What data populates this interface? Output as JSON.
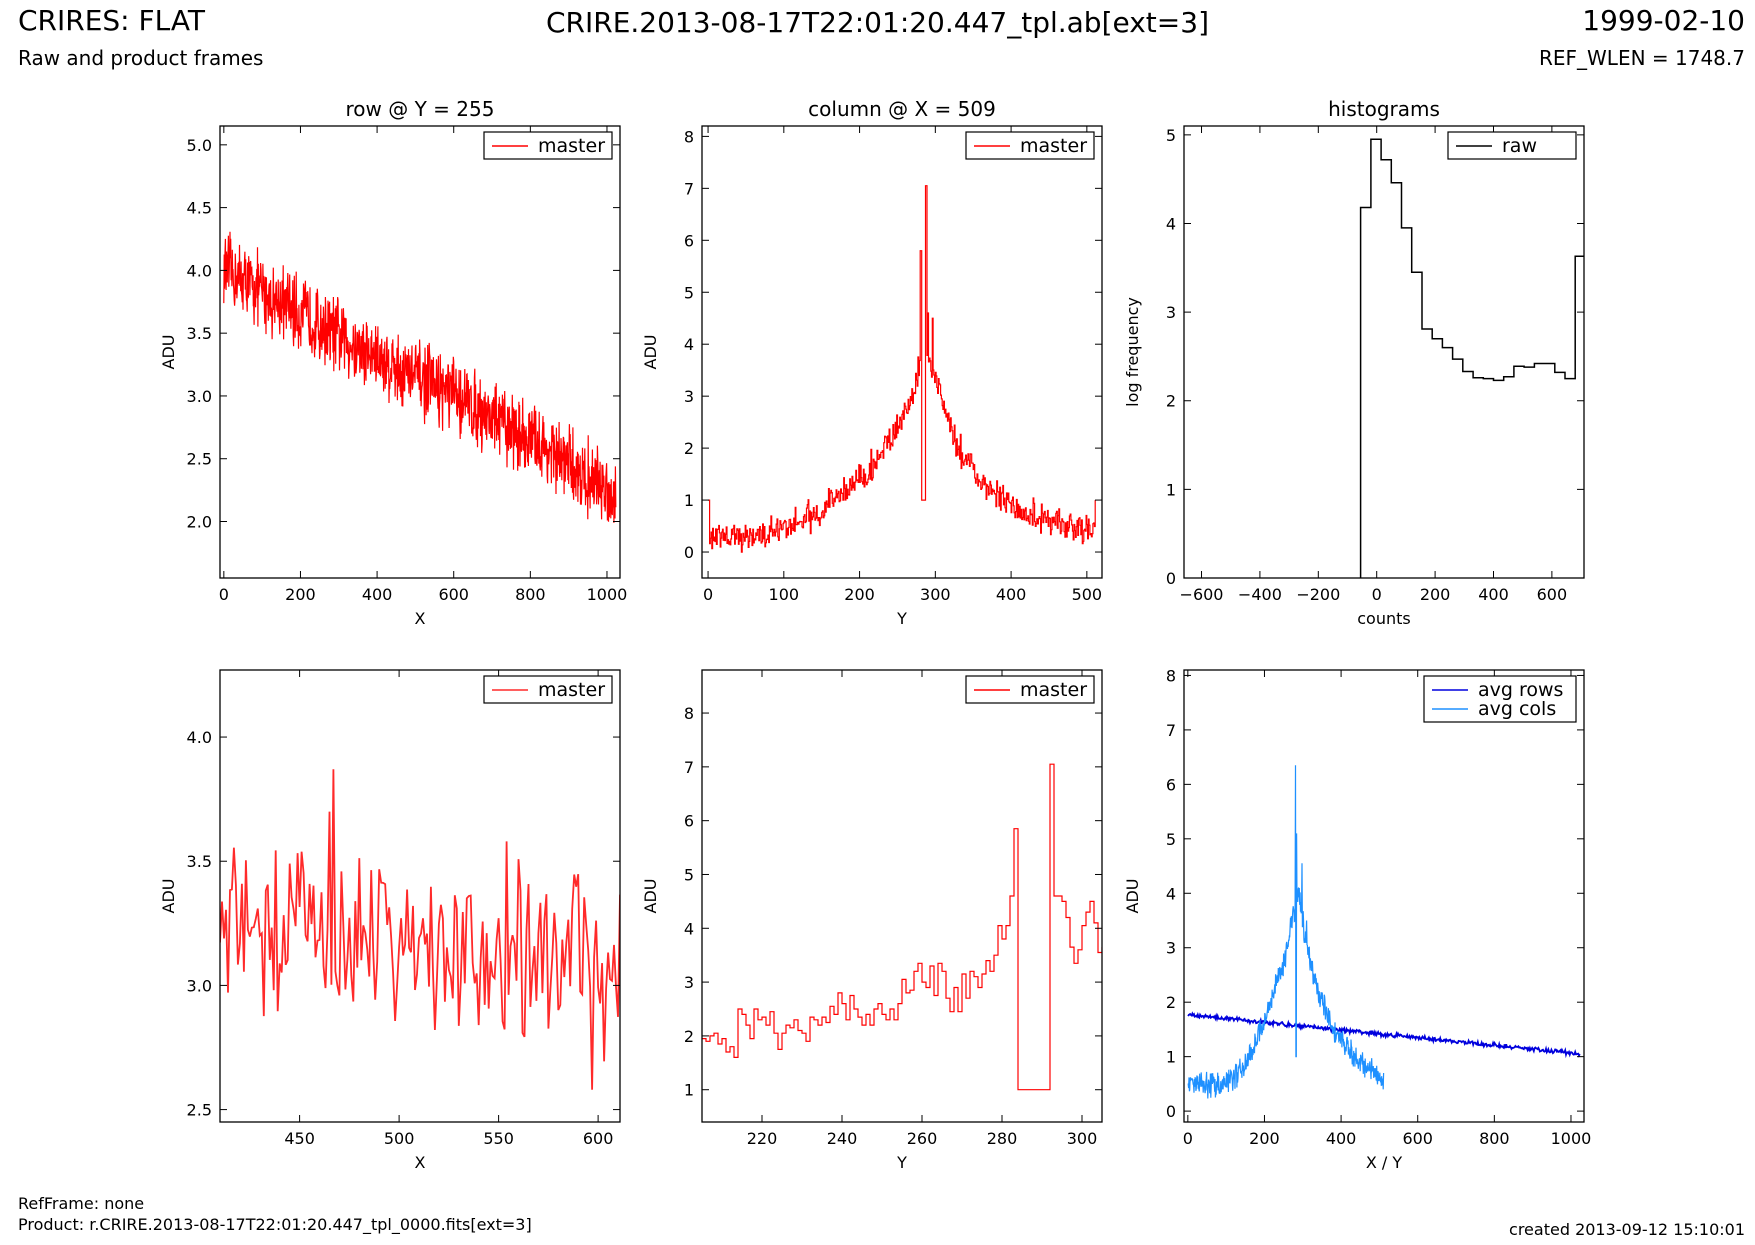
{
  "header": {
    "title": "CRIRES: FLAT",
    "subtitle": "Raw and product frames",
    "file": "CRIRE.2013-08-17T22:01:20.447_tpl.ab[ext=3]",
    "date": "1999-02-10",
    "ref_wlen": "REF_WLEN = 1748.7"
  },
  "footer": {
    "refframe": "RefFrame: none",
    "product": "Product: r.CRIRE.2013-08-17T22:01:20.447_tpl_0000.fits[ext=3]",
    "created": "created 2013-09-12 15:10:01"
  },
  "colors": {
    "master": "#ff0000",
    "raw": "#000000",
    "avg_rows": "#0000dd",
    "avg_cols": "#1e90ff"
  },
  "chart_data": [
    {
      "id": "row",
      "type": "line",
      "title": "row @ Y = 255",
      "xlabel": "X",
      "ylabel": "ADU",
      "xlim": [
        -10,
        1034
      ],
      "ylim": [
        1.55,
        5.15
      ],
      "xticks": [
        0,
        200,
        400,
        600,
        800,
        1000
      ],
      "yticks": [
        2.0,
        2.5,
        3.0,
        3.5,
        4.0,
        4.5,
        5.0
      ],
      "ytick_decimals": 1,
      "legend": [
        "master"
      ],
      "series": [
        {
          "name": "master",
          "color": "#ff0000",
          "step": false,
          "width": 1.2,
          "model": "noise",
          "x_start": 0,
          "x_end": 1023,
          "n": 1024,
          "trend": [
            [
              0,
              4.0
            ],
            [
              200,
              3.65
            ],
            [
              400,
              3.3
            ],
            [
              600,
              3.0
            ],
            [
              800,
              2.65
            ],
            [
              1023,
              2.2
            ]
          ],
          "noise_amplitude": 0.45
        }
      ]
    },
    {
      "id": "column",
      "type": "line",
      "title": "column @ X = 509",
      "xlabel": "Y",
      "ylabel": "ADU",
      "xlim": [
        -8,
        520
      ],
      "ylim": [
        -0.5,
        8.2
      ],
      "xticks": [
        0,
        100,
        200,
        300,
        400,
        500
      ],
      "yticks": [
        0,
        1,
        2,
        3,
        4,
        5,
        6,
        7,
        8
      ],
      "ytick_decimals": 0,
      "legend": [
        "master"
      ],
      "series": [
        {
          "name": "master",
          "color": "#ff0000",
          "step": true,
          "width": 1.2,
          "model": "noise",
          "x_start": 0,
          "x_end": 511,
          "n": 512,
          "trend": [
            [
              0,
              0.3
            ],
            [
              60,
              0.3
            ],
            [
              100,
              0.45
            ],
            [
              150,
              0.8
            ],
            [
              200,
              1.4
            ],
            [
              240,
              2.1
            ],
            [
              270,
              3.0
            ],
            [
              285,
              4.2
            ],
            [
              300,
              3.4
            ],
            [
              330,
              2.0
            ],
            [
              360,
              1.4
            ],
            [
              400,
              0.9
            ],
            [
              450,
              0.55
            ],
            [
              511,
              0.4
            ]
          ],
          "noise_amplitude": 0.45,
          "spikes": [
            [
              280,
              5.8
            ],
            [
              281,
              5.8
            ],
            [
              287,
              7.05
            ],
            [
              288,
              7.05
            ],
            [
              290,
              4.6
            ],
            [
              296,
              4.5
            ],
            [
              282,
              1.0
            ],
            [
              283,
              1.0
            ],
            [
              284,
              1.0
            ],
            [
              285,
              1.0
            ],
            [
              286,
              1.0
            ],
            [
              511,
              1.0
            ],
            [
              512,
              1.0
            ],
            [
              0,
              1.0
            ],
            [
              1,
              1.0
            ]
          ]
        }
      ]
    },
    {
      "id": "histograms",
      "type": "line",
      "title": "histograms",
      "xlabel": "counts",
      "ylabel": "log frequency",
      "xlim": [
        -660,
        710
      ],
      "ylim": [
        0,
        5.1
      ],
      "xticks": [
        -600,
        -400,
        -200,
        0,
        200,
        400,
        600
      ],
      "yticks": [
        0,
        1,
        2,
        3,
        4,
        5
      ],
      "ytick_decimals": 0,
      "legend": [
        "raw"
      ],
      "series": [
        {
          "name": "raw",
          "color": "#000000",
          "step": true,
          "width": 1.5,
          "x": [
            -55,
            -55,
            -20,
            15,
            50,
            85,
            120,
            155,
            190,
            225,
            260,
            295,
            330,
            365,
            400,
            435,
            470,
            505,
            540,
            575,
            610,
            645,
            680,
            710
          ],
          "y": [
            0,
            4.18,
            4.95,
            4.72,
            4.46,
            3.95,
            3.45,
            2.81,
            2.7,
            2.6,
            2.47,
            2.33,
            2.26,
            2.25,
            2.23,
            2.27,
            2.39,
            2.38,
            2.42,
            2.42,
            2.32,
            2.25,
            3.63,
            3.63
          ]
        }
      ]
    },
    {
      "id": "row-zoom",
      "type": "line",
      "title": "",
      "xlabel": "X",
      "ylabel": "ADU",
      "xlim": [
        410,
        611
      ],
      "ylim": [
        2.45,
        4.27
      ],
      "xticks": [
        450,
        500,
        550,
        600
      ],
      "yticks": [
        2.5,
        3.0,
        3.5,
        4.0
      ],
      "ytick_decimals": 1,
      "legend": [
        "master"
      ],
      "series": [
        {
          "name": "master",
          "color": "#ff2a2a",
          "step": false,
          "width": 1.8,
          "model": "noise",
          "x_start": 410,
          "x_end": 611,
          "n": 202,
          "trend": [
            [
              410,
              3.25
            ],
            [
              500,
              3.2
            ],
            [
              611,
              3.1
            ]
          ],
          "noise_amplitude": 0.55,
          "spikes": [
            [
              467,
              3.87
            ],
            [
              465,
              3.7
            ],
            [
              597,
              2.58
            ],
            [
              554,
              3.58
            ]
          ]
        }
      ]
    },
    {
      "id": "column-zoom",
      "type": "line",
      "title": "",
      "xlabel": "Y",
      "ylabel": "ADU",
      "xlim": [
        205,
        305
      ],
      "ylim": [
        0.4,
        8.8
      ],
      "xticks": [
        220,
        240,
        260,
        280,
        300
      ],
      "yticks": [
        1,
        2,
        3,
        4,
        5,
        6,
        7,
        8
      ],
      "ytick_decimals": 0,
      "legend": [
        "master"
      ],
      "series": [
        {
          "name": "master",
          "color": "#ff0000",
          "step": true,
          "width": 1.2,
          "x": [
            205,
            206,
            207,
            208,
            209,
            210,
            211,
            212,
            213,
            214,
            215,
            216,
            217,
            218,
            219,
            220,
            221,
            222,
            223,
            224,
            225,
            226,
            227,
            228,
            229,
            230,
            231,
            232,
            233,
            234,
            235,
            236,
            237,
            238,
            239,
            240,
            241,
            242,
            243,
            244,
            245,
            246,
            247,
            248,
            249,
            250,
            251,
            252,
            253,
            254,
            255,
            256,
            257,
            258,
            259,
            260,
            261,
            262,
            263,
            264,
            265,
            266,
            267,
            268,
            269,
            270,
            271,
            272,
            273,
            274,
            275,
            276,
            277,
            278,
            279,
            280,
            281,
            282,
            283,
            284,
            285,
            286,
            287,
            288,
            289,
            290,
            291,
            292,
            293,
            294,
            295,
            296,
            297,
            298,
            299,
            300,
            301,
            302,
            303,
            304,
            305
          ],
          "y": [
            1.95,
            1.9,
            2.0,
            2.05,
            1.85,
            1.95,
            1.7,
            1.8,
            1.6,
            2.5,
            2.4,
            2.2,
            1.95,
            2.5,
            2.3,
            2.35,
            2.2,
            2.45,
            2.05,
            1.75,
            2.05,
            2.2,
            2.15,
            2.3,
            2.1,
            2.05,
            1.9,
            2.35,
            2.3,
            2.2,
            2.35,
            2.25,
            2.55,
            2.4,
            2.8,
            2.6,
            2.3,
            2.75,
            2.5,
            2.35,
            2.2,
            2.4,
            2.2,
            2.5,
            2.6,
            2.4,
            2.3,
            2.5,
            2.3,
            2.6,
            3.05,
            2.8,
            2.85,
            3.2,
            3.35,
            3.0,
            2.9,
            3.3,
            2.75,
            3.35,
            3.2,
            2.7,
            2.45,
            2.9,
            2.45,
            3.15,
            2.7,
            3.2,
            3.1,
            2.9,
            3.15,
            3.4,
            3.2,
            3.5,
            4.05,
            3.8,
            4.05,
            4.6,
            5.85,
            1.0,
            1.0,
            1.0,
            1.0,
            1.0,
            1.0,
            1.0,
            1.0,
            7.05,
            4.6,
            4.6,
            4.5,
            4.2,
            3.65,
            3.35,
            3.6,
            4.05,
            4.3,
            4.5,
            4.1,
            3.55,
            3.65
          ]
        }
      ]
    },
    {
      "id": "averages",
      "type": "line",
      "title": "",
      "xlabel": "X / Y",
      "ylabel": "ADU",
      "xlim": [
        -10,
        1034
      ],
      "ylim": [
        -0.2,
        8.1
      ],
      "xticks": [
        0,
        200,
        400,
        600,
        800,
        1000
      ],
      "yticks": [
        0,
        1,
        2,
        3,
        4,
        5,
        6,
        7,
        8
      ],
      "ytick_decimals": 0,
      "legend": [
        "avg rows",
        "avg cols"
      ],
      "series": [
        {
          "name": "avg rows",
          "color": "#0000dd",
          "step": false,
          "width": 1.8,
          "model": "noise",
          "x_start": 0,
          "x_end": 1023,
          "n": 512,
          "trend": [
            [
              0,
              1.77
            ],
            [
              1023,
              1.05
            ]
          ],
          "noise_amplitude": 0.06
        },
        {
          "name": "avg cols",
          "color": "#1e90ff",
          "step": false,
          "width": 1.2,
          "model": "noise",
          "x_start": 0,
          "x_end": 511,
          "n": 512,
          "trend": [
            [
              0,
              0.5
            ],
            [
              60,
              0.45
            ],
            [
              120,
              0.6
            ],
            [
              170,
              1.1
            ],
            [
              210,
              1.9
            ],
            [
              250,
              2.7
            ],
            [
              275,
              3.6
            ],
            [
              290,
              4.0
            ],
            [
              310,
              3.0
            ],
            [
              340,
              2.2
            ],
            [
              380,
              1.5
            ],
            [
              420,
              1.1
            ],
            [
              470,
              0.8
            ],
            [
              511,
              0.5
            ]
          ],
          "noise_amplitude": 0.35,
          "spikes": [
            [
              281,
              6.35
            ],
            [
              282,
              1.0
            ],
            [
              283,
              1.0
            ],
            [
              284,
              5.1
            ],
            [
              298,
              4.55
            ],
            [
              310,
              3.5
            ],
            [
              511,
              0.7
            ],
            [
              510,
              0.4
            ]
          ]
        }
      ]
    }
  ]
}
